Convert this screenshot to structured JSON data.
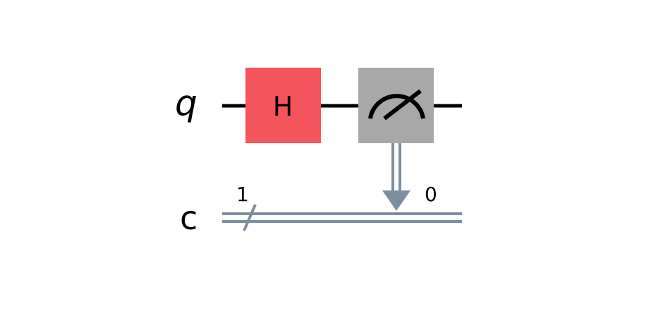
{
  "registers": {
    "quantum_label": "q",
    "classical_label": "c",
    "classical_size": "1"
  },
  "gates": {
    "hadamard_label": "H",
    "measure_target_bit": "0"
  },
  "colors": {
    "hadamard_fill": "#f4555c",
    "measure_fill": "#a8a8a8",
    "classical_wire": "#7d8ea1",
    "quantum_wire": "#000000"
  }
}
